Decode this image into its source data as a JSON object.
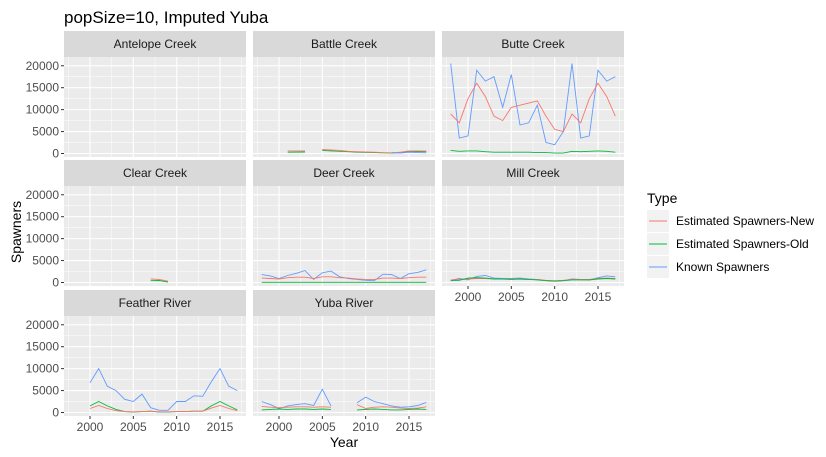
{
  "chart_data": {
    "type": "line",
    "title": "popSize=10, Imputed Yuba",
    "xlabel": "Year",
    "ylabel": "Spawners",
    "xlim": [
      1997,
      2018
    ],
    "ylim": [
      -800,
      22000
    ],
    "x_ticks": [
      2000,
      2005,
      2010,
      2015
    ],
    "y_ticks": [
      0,
      5000,
      10000,
      15000,
      20000
    ],
    "x_tick_labels": [
      "2000",
      "2005",
      "2010",
      "2015"
    ],
    "y_tick_labels": [
      "0",
      "5000",
      "10000",
      "15000",
      "20000"
    ],
    "grid": true,
    "legend": {
      "title": "Type",
      "position": "right",
      "entries": [
        "Estimated Spawners-New",
        "Estimated Spawners-Old",
        "Known Spawners"
      ],
      "colors": [
        "#F8766D",
        "#00BA38",
        "#619CFF"
      ]
    },
    "panels": [
      {
        "name": "Antelope Creek",
        "series": []
      },
      {
        "name": "Battle Creek",
        "series": [
          {
            "name": "Estimated Spawners-Old",
            "x": [
              2001,
              2003,
              null,
              2005,
              2006,
              2007,
              2008,
              2009,
              2010,
              2011,
              2012,
              2013,
              2014,
              2015,
              2016,
              2017
            ],
            "y": [
              300,
              350,
              null,
              700,
              600,
              500,
              400,
              300,
              250,
              200,
              150,
              100,
              200,
              400,
              450,
              400
            ]
          },
          {
            "name": "Estimated Spawners-New",
            "x": [
              2001,
              2003,
              null,
              2005,
              2006,
              2007,
              2008,
              2009,
              2010,
              2011,
              2012,
              2013,
              2014,
              2015,
              2016,
              2017
            ],
            "y": [
              600,
              600,
              null,
              900,
              800,
              700,
              500,
              400,
              350,
              300,
              200,
              150,
              300,
              600,
              600,
              550
            ]
          },
          {
            "name": "Known Spawners",
            "x": [
              2013,
              2014,
              2015,
              2016,
              2017
            ],
            "y": [
              200,
              100,
              300,
              200,
              150
            ]
          }
        ]
      },
      {
        "name": "Butte Creek",
        "series": [
          {
            "name": "Known Spawners",
            "x": [
              1998,
              1999,
              2000,
              2001,
              2002,
              2003,
              2004,
              2005,
              2006,
              2007,
              2008,
              2009,
              2010,
              2011,
              2012,
              2013,
              2014,
              2015,
              2016,
              2017
            ],
            "y": [
              20500,
              3500,
              4000,
              19000,
              16500,
              17500,
              10500,
              18000,
              6500,
              7000,
              11000,
              2500,
              2000,
              5000,
              20500,
              3500,
              4000,
              19000,
              16500,
              17500
            ]
          },
          {
            "name": "Estimated Spawners-New",
            "x": [
              1998,
              1999,
              2000,
              2001,
              2002,
              2003,
              2004,
              2005,
              2006,
              2007,
              2008,
              2009,
              2010,
              2011,
              2012,
              2013,
              2014,
              2015,
              2016,
              2017
            ],
            "y": [
              9000,
              7000,
              12500,
              16000,
              13000,
              8500,
              7500,
              10500,
              11000,
              11500,
              12000,
              8500,
              5500,
              5000,
              9000,
              7000,
              12500,
              16000,
              13000,
              8500
            ]
          },
          {
            "name": "Estimated Spawners-Old",
            "x": [
              1998,
              1999,
              2000,
              2001,
              2002,
              2003,
              2004,
              2005,
              2006,
              2007,
              2008,
              2009,
              2010,
              2011,
              2012,
              2013,
              2014,
              2015,
              2016,
              2017
            ],
            "y": [
              700,
              500,
              600,
              600,
              400,
              300,
              300,
              300,
              300,
              300,
              200,
              200,
              100,
              100,
              500,
              400,
              500,
              600,
              500,
              300
            ]
          }
        ]
      },
      {
        "name": "Clear Creek",
        "series": [
          {
            "name": "Estimated Spawners-Old",
            "x": [
              2007,
              2008,
              2009
            ],
            "y": [
              400,
              450,
              100
            ]
          },
          {
            "name": "Estimated Spawners-New",
            "x": [
              2007,
              2008,
              2009
            ],
            "y": [
              800,
              700,
              300
            ]
          }
        ]
      },
      {
        "name": "Deer Creek",
        "series": [
          {
            "name": "Known Spawners",
            "x": [
              1998,
              1999,
              2000,
              2001,
              2002,
              2003,
              2004,
              2005,
              2006,
              2007,
              2008,
              2009,
              2010,
              2011,
              2012,
              2013,
              2014,
              2015,
              2016,
              2017
            ],
            "y": [
              1800,
              1500,
              900,
              1600,
              2100,
              2700,
              700,
              2200,
              2600,
              1300,
              900,
              700,
              500,
              400,
              1900,
              1800,
              900,
              2000,
              2300,
              2900
            ]
          },
          {
            "name": "Estimated Spawners-New",
            "x": [
              1998,
              1999,
              2000,
              2001,
              2002,
              2003,
              2004,
              2005,
              2006,
              2007,
              2008,
              2009,
              2010,
              2011,
              2012,
              2013,
              2014,
              2015,
              2016,
              2017
            ],
            "y": [
              1000,
              900,
              800,
              1100,
              1200,
              1200,
              900,
              1300,
              1300,
              1100,
              1000,
              800,
              700,
              700,
              1000,
              1000,
              900,
              1100,
              1200,
              1200
            ]
          },
          {
            "name": "Estimated Spawners-Old",
            "x": [
              1998,
              2017
            ],
            "y": [
              50,
              50
            ]
          }
        ]
      },
      {
        "name": "Mill Creek",
        "series": [
          {
            "name": "Known Spawners",
            "x": [
              1998,
              1999,
              2000,
              2001,
              2002,
              2003,
              2004,
              2005,
              2006,
              2007,
              2008,
              2009,
              2010,
              2011,
              2012,
              2013,
              2014,
              2015,
              2016,
              2017
            ],
            "y": [
              500,
              900,
              600,
              1400,
              1600,
              1000,
              900,
              900,
              1000,
              800,
              700,
              400,
              300,
              400,
              800,
              700,
              600,
              1100,
              1500,
              1300
            ]
          },
          {
            "name": "Estimated Spawners-New",
            "x": [
              1998,
              1999,
              2000,
              2001,
              2002,
              2003,
              2004,
              2005,
              2006,
              2007,
              2008,
              2009,
              2010,
              2011,
              2012,
              2013,
              2014,
              2015,
              2016,
              2017
            ],
            "y": [
              600,
              700,
              800,
              900,
              900,
              800,
              800,
              800,
              800,
              700,
              700,
              500,
              400,
              500,
              700,
              700,
              700,
              900,
              1000,
              900
            ]
          },
          {
            "name": "Estimated Spawners-Old",
            "x": [
              1998,
              1999,
              2000,
              2001,
              2002,
              2003,
              2004,
              2005,
              2006,
              2007,
              2008,
              2009,
              2010,
              2011,
              2012,
              2013,
              2014,
              2015,
              2016,
              2017
            ],
            "y": [
              400,
              500,
              1000,
              1100,
              1000,
              800,
              800,
              700,
              800,
              700,
              600,
              400,
              300,
              400,
              600,
              600,
              600,
              800,
              900,
              800
            ]
          }
        ]
      },
      {
        "name": "Feather River",
        "series": [
          {
            "name": "Known Spawners",
            "x": [
              2000,
              2001,
              2002,
              2003,
              2004,
              2005,
              2006,
              2007,
              2008,
              2009,
              2010,
              2011,
              2012,
              2013,
              2014,
              2015,
              2016,
              2017
            ],
            "y": [
              6800,
              10000,
              6000,
              5000,
              3000,
              2500,
              4200,
              1100,
              500,
              500,
              2500,
              2500,
              3800,
              3700,
              7000,
              10000,
              6000,
              5000
            ]
          },
          {
            "name": "Estimated Spawners-Old",
            "x": [
              2000,
              2001,
              2002,
              2003,
              2004,
              2005,
              2006,
              2007,
              2008,
              2009,
              2010,
              2011,
              2012,
              2013,
              2014,
              2015,
              2016,
              2017
            ],
            "y": [
              1500,
              2500,
              1500,
              700,
              200,
              100,
              200,
              300,
              100,
              100,
              200,
              200,
              300,
              300,
              1500,
              2500,
              1500,
              600
            ]
          },
          {
            "name": "Estimated Spawners-New",
            "x": [
              2000,
              2001,
              2002,
              2003,
              2004,
              2005,
              2006,
              2007,
              2008,
              2009,
              2010,
              2011,
              2012,
              2013,
              2014,
              2015,
              2016,
              2017
            ],
            "y": [
              900,
              1600,
              900,
              400,
              200,
              150,
              200,
              300,
              150,
              150,
              200,
              200,
              300,
              300,
              1000,
              1600,
              900,
              400
            ]
          }
        ]
      },
      {
        "name": "Yuba River",
        "series": [
          {
            "name": "Known Spawners",
            "x": [
              1998,
              1999,
              2000,
              2001,
              2002,
              2003,
              2004,
              2005,
              2006,
              null,
              2009,
              2010,
              2011,
              2012,
              2013,
              2014,
              2015,
              2016,
              2017
            ],
            "y": [
              2500,
              1800,
              900,
              1500,
              1800,
              2000,
              1600,
              5300,
              1500,
              null,
              2200,
              3500,
              2500,
              2000,
              1500,
              1200,
              1300,
              1600,
              2300
            ]
          },
          {
            "name": "Estimated Spawners-New",
            "x": [
              1998,
              1999,
              2000,
              2001,
              2002,
              2003,
              2004,
              2005,
              2006,
              null,
              2009,
              2010,
              2011,
              2012,
              2013,
              2014,
              2015,
              2016,
              2017
            ],
            "y": [
              1400,
              1200,
              1100,
              1200,
              1300,
              1300,
              1200,
              1300,
              1200,
              null,
              1800,
              900,
              1200,
              1300,
              1200,
              1000,
              900,
              1000,
              1300
            ]
          },
          {
            "name": "Estimated Spawners-Old",
            "x": [
              1998,
              1999,
              2000,
              2001,
              2002,
              2003,
              2004,
              2005,
              2006,
              null,
              2009,
              2010,
              2011,
              2012,
              2013,
              2014,
              2015,
              2016,
              2017
            ],
            "y": [
              600,
              700,
              800,
              700,
              800,
              800,
              700,
              800,
              700,
              null,
              600,
              700,
              800,
              700,
              600,
              600,
              700,
              800,
              700
            ]
          }
        ]
      }
    ]
  }
}
